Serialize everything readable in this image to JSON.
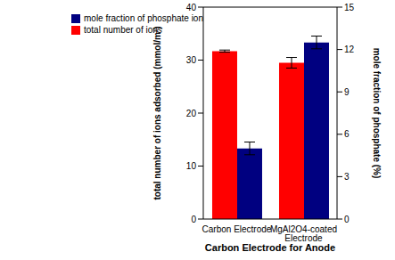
{
  "chart_data": {
    "type": "bar",
    "categories": [
      "Carbon Electrode",
      "MgAl2O4-coated Electrode"
    ],
    "x_label": "Carbon Electrode for Anode",
    "y_label": "total number of ions adsorbed (mmol/m²)",
    "y2_label": "mole fraction of phosphate (%)",
    "ylim": [
      0,
      40
    ],
    "yticks": [
      0,
      10,
      20,
      30,
      40
    ],
    "y2lim": [
      0,
      15
    ],
    "y2ticks": [
      0,
      3,
      6,
      9,
      12,
      15
    ],
    "grid": false,
    "legend": "upper left",
    "series": [
      {
        "name": "total number of ions",
        "color": "#ff0000",
        "values": [
          31.7,
          29.5
        ],
        "errors": [
          0.2,
          1.0
        ]
      },
      {
        "name": "mole fraction of phosphate ion",
        "color": "#000080",
        "axis": "y2",
        "values": [
          5.0,
          12.5
        ],
        "errors": [
          0.45,
          0.45
        ]
      }
    ]
  }
}
